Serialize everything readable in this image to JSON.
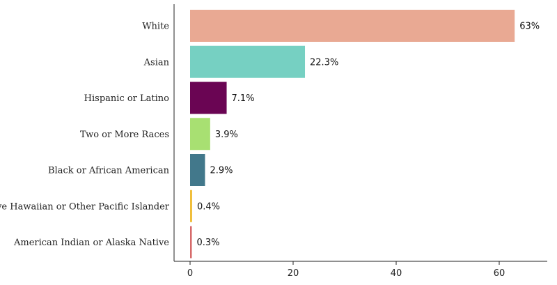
{
  "chart_data": {
    "type": "bar",
    "orientation": "horizontal",
    "categories": [
      "White",
      "Asian",
      "Hispanic or Latino",
      "Two or More Races",
      "Black or African American",
      "Native Hawaiian or Other Pacific Islander",
      "American Indian or Alaska Native"
    ],
    "values": [
      63,
      22.3,
      7.1,
      3.9,
      2.9,
      0.4,
      0.3
    ],
    "value_labels": [
      "63%",
      "22.3%",
      "7.1%",
      "3.9%",
      "2.9%",
      "0.4%",
      "0.3%"
    ],
    "colors": [
      "#E9A993",
      "#76D0C2",
      "#6A0553",
      "#A8E072",
      "#42788B",
      "#F0BE3A",
      "#D66A6A"
    ],
    "title": "",
    "xlabel": "",
    "ylabel": "",
    "xlim": [
      0,
      68
    ],
    "xticks": [
      0,
      20,
      40,
      60
    ],
    "tick_labels": [
      "0",
      "20",
      "40",
      "60"
    ],
    "grid": false,
    "legend": "none"
  }
}
